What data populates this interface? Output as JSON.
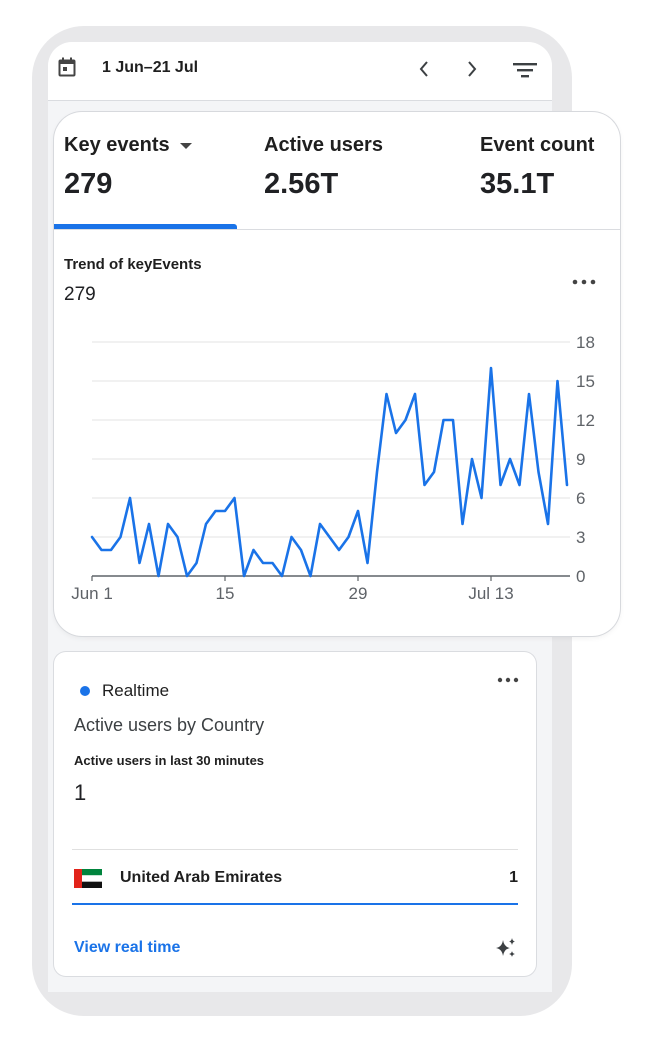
{
  "header": {
    "date_range": "1 Jun–21 Jul",
    "icons": [
      "calendar-icon",
      "chevron-left-icon",
      "chevron-right-icon",
      "filter-icon"
    ]
  },
  "metrics": [
    {
      "label": "Key events",
      "value": "279"
    },
    {
      "label": "Active users",
      "value": "2.56T"
    },
    {
      "label": "Event count",
      "value": "35.1T"
    }
  ],
  "trend": {
    "title": "Trend of keyEvents",
    "total": "279"
  },
  "chart_data": {
    "type": "line",
    "title": "Trend of keyEvents",
    "xlabel": "",
    "ylabel": "",
    "ylim": [
      0,
      18
    ],
    "yticks": [
      "0",
      "3",
      "6",
      "9",
      "12",
      "15",
      "18"
    ],
    "x_labels": [
      {
        "index": 0,
        "label": "Jun 1"
      },
      {
        "index": 14,
        "label": "15"
      },
      {
        "index": 28,
        "label": "29"
      },
      {
        "index": 42,
        "label": "Jul 13"
      }
    ],
    "grid": true,
    "color": "#1a73e8",
    "values": [
      3,
      2,
      2,
      3,
      6,
      1,
      4,
      0,
      4,
      3,
      0,
      1,
      4,
      5,
      5,
      6,
      0,
      2,
      1,
      1,
      0,
      3,
      2,
      0,
      4,
      3,
      2,
      3,
      5,
      1,
      8,
      14,
      11,
      12,
      14,
      7,
      8,
      12,
      12,
      4,
      9,
      6,
      16,
      7,
      9,
      7,
      14,
      8,
      4,
      15,
      7
    ]
  },
  "realtime": {
    "label": "Realtime",
    "title": "Active users by Country",
    "subtitle": "Active users in last 30 minutes",
    "value": "1",
    "rows": [
      {
        "country": "United Arab Emirates",
        "count": "1"
      }
    ],
    "link": "View real time"
  },
  "colors": {
    "accent": "#1a73e8",
    "card_border": "#d7d9dd",
    "device": "#e8e8ea"
  }
}
